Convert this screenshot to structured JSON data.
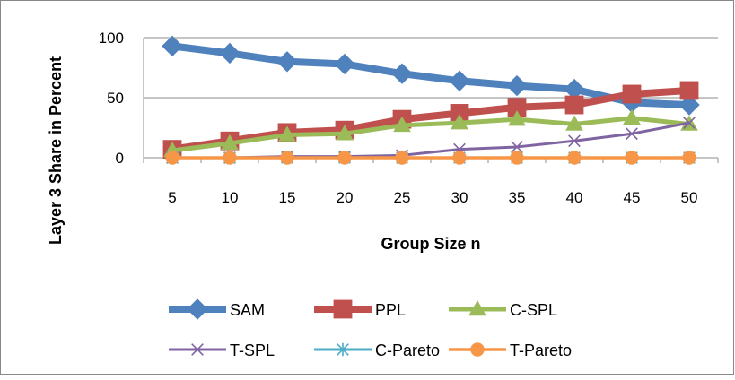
{
  "chart_data": {
    "type": "line",
    "title": "",
    "xlabel": "Group Size n",
    "ylabel": "Layer 3 Share in Percent",
    "categories": [
      "5",
      "10",
      "15",
      "20",
      "25",
      "30",
      "35",
      "40",
      "45",
      "50"
    ],
    "yticks": [
      "0",
      "50",
      "100"
    ],
    "ylim": [
      0,
      100
    ],
    "grid": "horizontal",
    "legend_position": "bottom",
    "series": [
      {
        "name": "SAM",
        "color": "#4f81bd",
        "marker": "diamond",
        "values": [
          93,
          87,
          80,
          78,
          70,
          64,
          60,
          57,
          46,
          44
        ]
      },
      {
        "name": "PPL",
        "color": "#c0504d",
        "marker": "square",
        "values": [
          7,
          14,
          21,
          23,
          32,
          37,
          42,
          44,
          53,
          56
        ]
      },
      {
        "name": "C-SPL",
        "color": "#9bbb59",
        "marker": "triangle",
        "values": [
          6,
          12,
          19,
          20,
          27,
          29,
          32,
          28,
          33,
          28
        ]
      },
      {
        "name": "T-SPL",
        "color": "#8064a2",
        "marker": "x",
        "values": [
          0,
          0,
          1,
          1,
          2,
          7,
          9,
          14,
          20,
          29
        ]
      },
      {
        "name": "C-Pareto",
        "color": "#4bacc6",
        "marker": "star",
        "values": [
          0,
          0,
          0,
          0,
          0,
          0,
          0,
          0,
          0,
          0
        ]
      },
      {
        "name": "T-Pareto",
        "color": "#f79646",
        "marker": "circle",
        "values": [
          0,
          0,
          0,
          0,
          0,
          0,
          0,
          0,
          0,
          0
        ]
      }
    ]
  }
}
